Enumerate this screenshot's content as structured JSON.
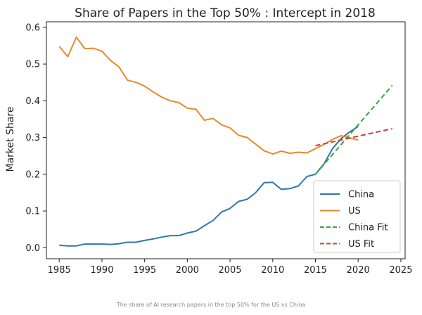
{
  "chart_data": {
    "type": "line",
    "title": "Share of Papers in the Top 50% : Intercept in 2018",
    "xlabel": "",
    "ylabel": "Market Share",
    "xlim": [
      1983.5,
      2025.5
    ],
    "ylim": [
      -0.03,
      0.615
    ],
    "x_ticks": [
      1985,
      1990,
      1995,
      2000,
      2005,
      2010,
      2015,
      2020,
      2025
    ],
    "y_ticks": [
      0.0,
      0.1,
      0.2,
      0.3,
      0.4,
      0.5,
      0.6
    ],
    "y_tick_labels": [
      "0.0",
      "0.1",
      "0.2",
      "0.3",
      "0.4",
      "0.5",
      "0.6"
    ],
    "grid": false,
    "legend_position": "lower-right",
    "series": [
      {
        "name": "China",
        "color": "#2f77ad",
        "dash": "solid",
        "x": [
          1985,
          1986,
          1987,
          1988,
          1989,
          1990,
          1991,
          1992,
          1993,
          1994,
          1995,
          1996,
          1997,
          1998,
          1999,
          2000,
          2001,
          2002,
          2003,
          2004,
          2005,
          2006,
          2007,
          2008,
          2009,
          2010,
          2011,
          2012,
          2013,
          2014,
          2015,
          2016,
          2017,
          2018,
          2019,
          2020
        ],
        "y": [
          0.007,
          0.005,
          0.005,
          0.01,
          0.01,
          0.01,
          0.009,
          0.011,
          0.015,
          0.015,
          0.02,
          0.024,
          0.029,
          0.033,
          0.033,
          0.04,
          0.045,
          0.06,
          0.074,
          0.097,
          0.107,
          0.126,
          0.132,
          0.15,
          0.177,
          0.178,
          0.159,
          0.161,
          0.168,
          0.194,
          0.2,
          0.228,
          0.27,
          0.297,
          0.315,
          0.33
        ]
      },
      {
        "name": "US",
        "color": "#e8892b",
        "dash": "solid",
        "x": [
          1985,
          1986,
          1987,
          1988,
          1989,
          1990,
          1991,
          1992,
          1993,
          1994,
          1995,
          1996,
          1997,
          1998,
          1999,
          2000,
          2001,
          2002,
          2003,
          2004,
          2005,
          2006,
          2007,
          2008,
          2009,
          2010,
          2011,
          2012,
          2013,
          2014,
          2015,
          2016,
          2017,
          2018,
          2019,
          2020
        ],
        "y": [
          0.548,
          0.52,
          0.573,
          0.542,
          0.543,
          0.535,
          0.51,
          0.492,
          0.456,
          0.45,
          0.44,
          0.424,
          0.41,
          0.4,
          0.395,
          0.38,
          0.377,
          0.347,
          0.352,
          0.335,
          0.326,
          0.306,
          0.3,
          0.282,
          0.264,
          0.255,
          0.263,
          0.257,
          0.26,
          0.258,
          0.27,
          0.281,
          0.295,
          0.305,
          0.299,
          0.293
        ]
      },
      {
        "name": "China Fit",
        "color": "#3aa343",
        "dash": "dashed",
        "x": [
          2015,
          2024
        ],
        "y": [
          0.2,
          0.442
        ]
      },
      {
        "name": "US Fit",
        "color": "#c8403c",
        "dash": "dashed",
        "x": [
          2015,
          2024
        ],
        "y": [
          0.278,
          0.324
        ]
      }
    ]
  },
  "caption": "The share of AI research papers in the top 50% for the US vs China"
}
